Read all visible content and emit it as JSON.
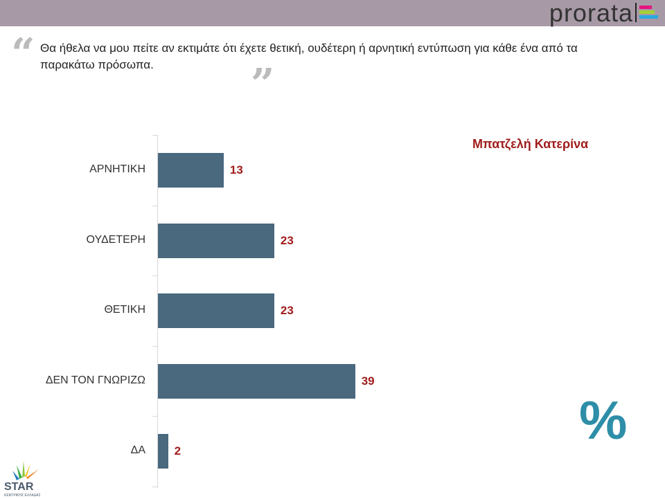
{
  "header": {
    "brand": "prorata",
    "brand_colors": [
      "#e6157f",
      "#a6cf38",
      "#2aa9df"
    ],
    "bar_color": "#a79aa6"
  },
  "question": "Θα ήθελα να μου πείτε αν εκτιμάτε ότι έχετε θετική, ουδέτερη ή αρνητική εντύπωση για κάθε ένα από τα παρακάτω πρόσωπα.",
  "person": "Μπατζελή Κατερίνα",
  "unit_symbol": "%",
  "footer_logo": {
    "text": "STAR",
    "subtext": "ΚΕΝΤΡΙΚΗΣ ΕΛΛΑΔΑΣ"
  },
  "chart_data": {
    "type": "bar",
    "orientation": "horizontal",
    "categories": [
      "ΑΡΝΗΤΙΚΗ",
      "ΟΥΔΕΤΕΡΗ",
      "ΘΕΤΙΚΗ",
      "ΔΕΝ ΤΟΝ ΓΝΩΡΙΖΩ",
      "ΔΑ"
    ],
    "values": [
      13,
      23,
      23,
      39,
      2
    ],
    "xlim": [
      0,
      100
    ],
    "grid": false,
    "bar_color": "#4a687e",
    "label_color": "#a01c1c"
  }
}
